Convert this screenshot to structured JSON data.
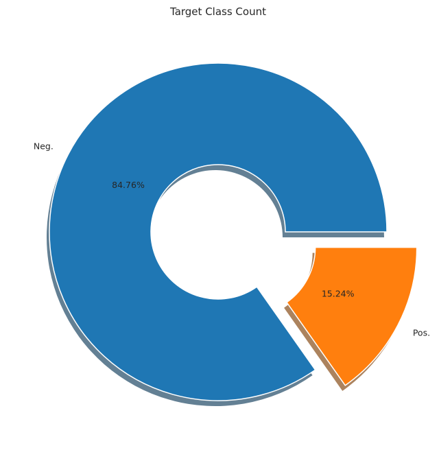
{
  "chart_data": {
    "type": "pie",
    "title": "Target Class Count",
    "categories": [
      "Neg.",
      "Pos."
    ],
    "values": [
      84.76,
      15.24
    ],
    "value_labels": [
      "84.76%",
      "15.24%"
    ],
    "colors": [
      "#1f77b4",
      "#ff7f0e"
    ],
    "explode": [
      0,
      0.2
    ],
    "donut": true,
    "shadow": true,
    "start_angle_deg": 0,
    "direction": "counterclockwise"
  }
}
